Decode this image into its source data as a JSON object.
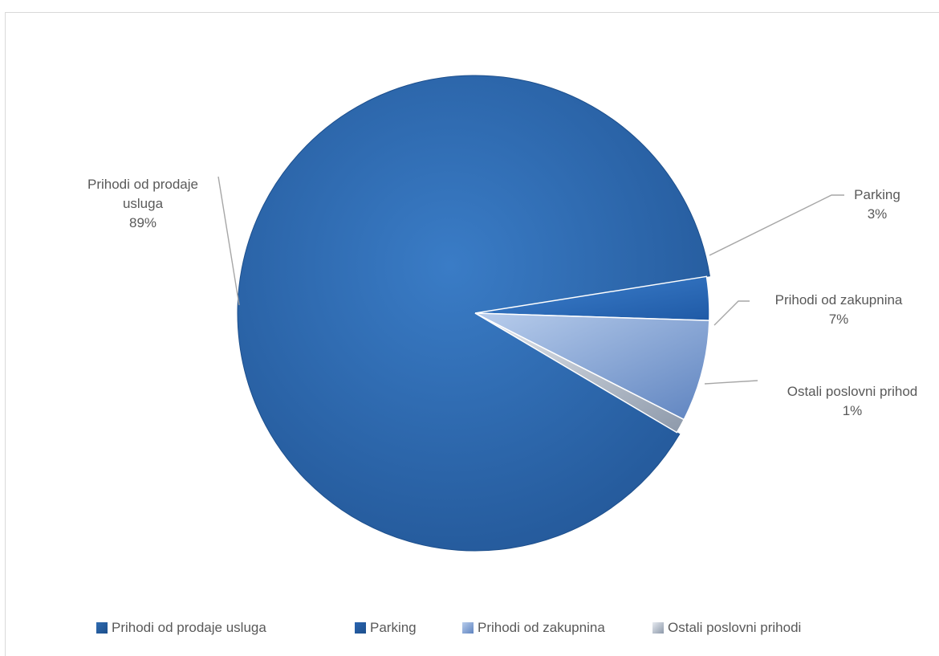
{
  "chart_data": {
    "type": "pie",
    "title": "",
    "slices": [
      {
        "label": "Prihodi od prodaje usluga",
        "value": 89,
        "display": "89%",
        "color": "#2f6bb0"
      },
      {
        "label": "Parking",
        "value": 3,
        "display": "3%",
        "color": "#2a64b0"
      },
      {
        "label": "Prihodi od zakupnina",
        "value": 7,
        "display": "7%",
        "color": "#6f93cc"
      },
      {
        "label": "Ostali poslovni prihodi",
        "value": 1,
        "display": "1%",
        "color": "#a9b4c4"
      }
    ],
    "data_labels": [
      {
        "lines": [
          "Prihodi od prodaje",
          "usluga",
          "89%"
        ]
      },
      {
        "lines": [
          "Parking",
          "3%"
        ]
      },
      {
        "lines": [
          "Prihodi od zakupnina",
          "7%"
        ]
      },
      {
        "lines": [
          "Ostali poslovni prihod",
          "1%"
        ]
      }
    ],
    "legend": {
      "position": "bottom",
      "items": [
        "Prihodi od prodaje usluga",
        "Parking",
        "Prihodi od zakupnina",
        "Ostali poslovni prihodi"
      ]
    }
  }
}
